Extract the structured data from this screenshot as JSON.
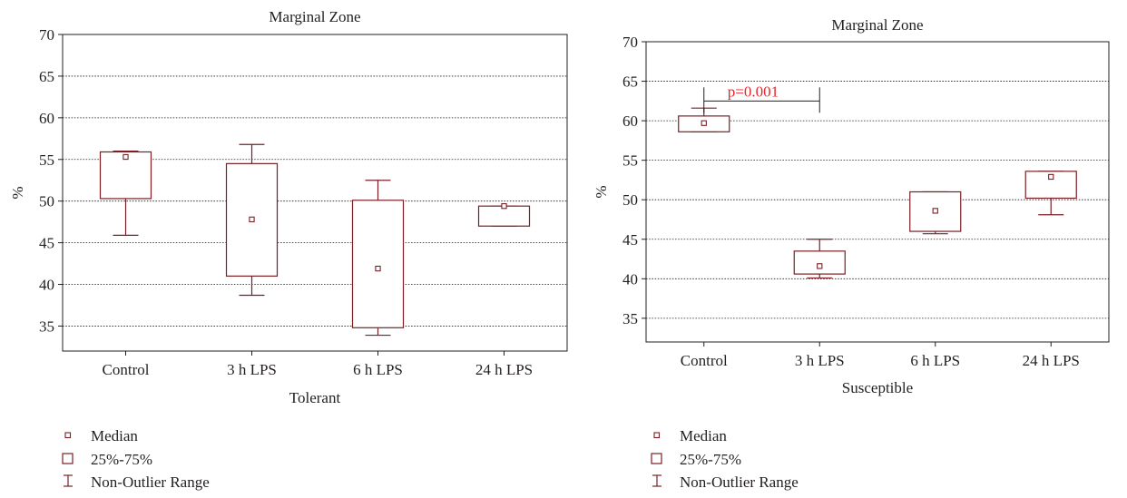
{
  "legend": {
    "median_label": "Median",
    "box_label": "25%-75%",
    "whisker_label": "Non-Outlier Range"
  },
  "colors": {
    "box": "#7b1f24",
    "annotation": "#e8262d",
    "grid": "#231f20",
    "text": "#231f20"
  },
  "chart_data": [
    {
      "type": "box",
      "title": "Marginal Zone",
      "xlabel": "Tolerant",
      "ylabel": "%",
      "ylim": [
        32,
        70
      ],
      "yticks": [
        35,
        40,
        45,
        50,
        55,
        60,
        65,
        70
      ],
      "grid": true,
      "legend_placement": "bottom-left",
      "categories": [
        "Control",
        "3 h LPS",
        "6 h LPS",
        "24 h LPS"
      ],
      "boxes": [
        {
          "median": 55.3,
          "q1": 50.3,
          "q3": 55.9,
          "min": 45.9,
          "max": 56.0
        },
        {
          "median": 47.8,
          "q1": 41.0,
          "q3": 54.5,
          "min": 38.7,
          "max": 56.8
        },
        {
          "median": 41.9,
          "q1": 34.8,
          "q3": 50.1,
          "min": 33.9,
          "max": 52.5
        },
        {
          "median": 49.4,
          "q1": 47.0,
          "q3": 49.4,
          "min": 47.0,
          "max": 49.4
        }
      ],
      "annotations": []
    },
    {
      "type": "box",
      "title": "Marginal Zone",
      "xlabel": "Susceptible",
      "ylabel": "%",
      "ylim": [
        32,
        70
      ],
      "yticks": [
        35,
        40,
        45,
        50,
        55,
        60,
        65,
        70
      ],
      "grid": true,
      "legend_placement": "bottom-left",
      "categories": [
        "Control",
        "3 h LPS",
        "6 h LPS",
        "24 h LPS"
      ],
      "boxes": [
        {
          "median": 59.7,
          "q1": 58.6,
          "q3": 60.6,
          "min": 58.6,
          "max": 61.6
        },
        {
          "median": 41.6,
          "q1": 40.6,
          "q3": 43.5,
          "min": 40.1,
          "max": 45.0
        },
        {
          "median": 48.6,
          "q1": 46.0,
          "q3": 51.0,
          "min": 45.7,
          "max": 51.0
        },
        {
          "median": 52.9,
          "q1": 50.2,
          "q3": 53.6,
          "min": 48.1,
          "max": 53.6
        }
      ],
      "annotations": [
        {
          "text": "p=0.001",
          "from_category": 0,
          "to_category": 1,
          "y": 62.5
        }
      ]
    }
  ]
}
